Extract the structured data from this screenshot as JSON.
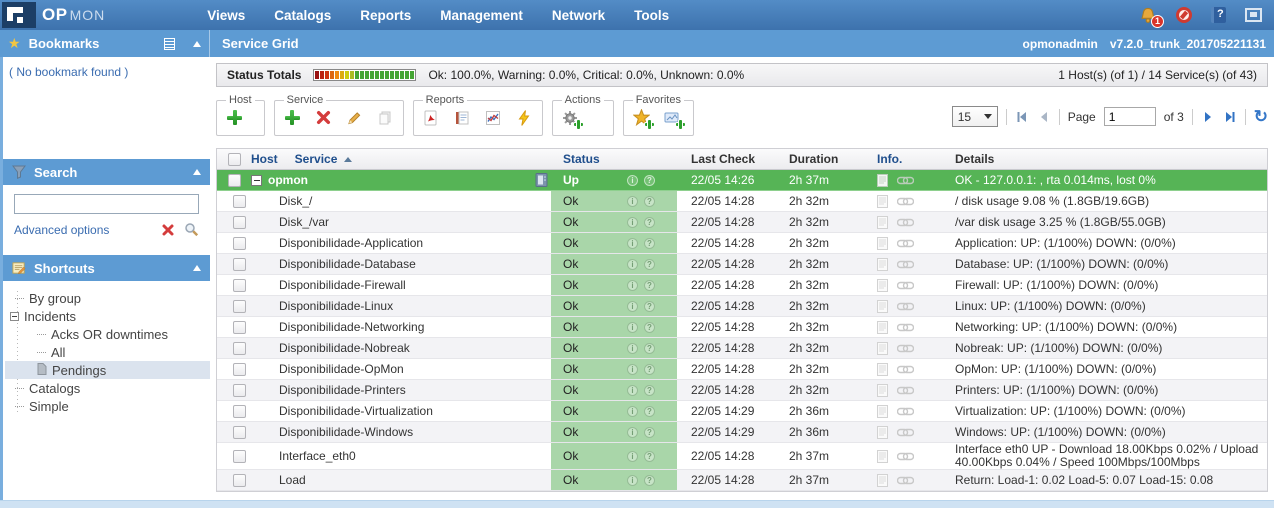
{
  "colors": {
    "topbar_blue": "#3d72ad",
    "panel_blue": "#5d9bd3",
    "host_row_green": "#56b456",
    "ok_cell_green": "#a9d6a9",
    "header_text_navy": "#1f4e8c",
    "alert_red": "#d9342b"
  },
  "icons": {
    "star": "★",
    "collapse_arrow": "▲",
    "sort_asc": "▲",
    "dropdown_arrow": "▼",
    "refresh": "↻",
    "minus_box": "−",
    "info_circle": "i",
    "question_circle": "?"
  },
  "topbar": {
    "logo_op": "OP",
    "logo_mon": "MON",
    "menu": [
      "Views",
      "Catalogs",
      "Reports",
      "Management",
      "Network",
      "Tools"
    ],
    "alert_badge": "1"
  },
  "subheader": {
    "bookmarks_title": "Bookmarks",
    "page_title": "Service Grid",
    "user": "opmonadmin",
    "version": "v7.2.0_trunk_201705221131"
  },
  "sidebar": {
    "no_bookmark": "( No bookmark found )",
    "search_title": "Search",
    "search_value": "",
    "advanced_options": "Advanced options",
    "shortcuts_title": "Shortcuts",
    "tree": [
      {
        "label": "By group",
        "level": 0,
        "icon": "leaf"
      },
      {
        "label": "Incidents",
        "level": 0,
        "icon": "minus"
      },
      {
        "label": "Acks OR downtimes",
        "level": 1,
        "icon": "leaf"
      },
      {
        "label": "All",
        "level": 1,
        "icon": "leaf"
      },
      {
        "label": "Pendings",
        "level": 1,
        "icon": "file",
        "selected": true
      },
      {
        "label": "Catalogs",
        "level": 0,
        "icon": "leaf"
      },
      {
        "label": "Simple",
        "level": 0,
        "icon": "leaf"
      }
    ]
  },
  "statusbar": {
    "label": "Status Totals",
    "summary": "Ok: 100.0%, Warning: 0.0%, Critical: 0.0%, Unknown: 0.0%",
    "right": "1 Host(s) (of 1) / 14 Service(s) (of 43)",
    "meter_colors": [
      "#991111",
      "#bb2211",
      "#cc3311",
      "#dd6611",
      "#ee8811",
      "#ddaa11",
      "#cccc11",
      "#aabb22",
      "#44a533",
      "#44a533",
      "#44a533",
      "#44a533",
      "#44a533",
      "#44a533",
      "#44a533",
      "#44a533",
      "#44a533",
      "#44a533",
      "#44a533",
      "#44a533"
    ]
  },
  "toolbar": {
    "groups": {
      "host": "Host",
      "service": "Service",
      "reports": "Reports",
      "actions": "Actions",
      "favorites": "Favorites"
    }
  },
  "pagination": {
    "page_size": "15",
    "page_label": "Page",
    "page_value": "1",
    "of_label": "of 3"
  },
  "table": {
    "headers": {
      "host": "Host",
      "service": "Service",
      "status": "Status",
      "last_check": "Last Check",
      "duration": "Duration",
      "info": "Info.",
      "details": "Details"
    },
    "host_row": {
      "name": "opmon",
      "status": "Up",
      "last_check": "22/05 14:26",
      "duration": "2h 37m",
      "details": "OK - 127.0.0.1: , rta 0.014ms, lost 0%"
    },
    "rows": [
      {
        "service": "Disk_/",
        "status": "Ok",
        "last_check": "22/05 14:28",
        "duration": "2h 32m",
        "details": "/ disk usage 9.08 % (1.8GB/19.6GB)"
      },
      {
        "service": "Disk_/var",
        "status": "Ok",
        "last_check": "22/05 14:28",
        "duration": "2h 32m",
        "details": "/var disk usage 3.25 % (1.8GB/55.0GB)"
      },
      {
        "service": "Disponibilidade-Application",
        "status": "Ok",
        "last_check": "22/05 14:28",
        "duration": "2h 32m",
        "details": "Application: UP: (1/100%) DOWN: (0/0%)"
      },
      {
        "service": "Disponibilidade-Database",
        "status": "Ok",
        "last_check": "22/05 14:28",
        "duration": "2h 32m",
        "details": "Database: UP: (1/100%) DOWN: (0/0%)"
      },
      {
        "service": "Disponibilidade-Firewall",
        "status": "Ok",
        "last_check": "22/05 14:28",
        "duration": "2h 32m",
        "details": "Firewall: UP: (1/100%) DOWN: (0/0%)"
      },
      {
        "service": "Disponibilidade-Linux",
        "status": "Ok",
        "last_check": "22/05 14:28",
        "duration": "2h 32m",
        "details": "Linux: UP: (1/100%) DOWN: (0/0%)"
      },
      {
        "service": "Disponibilidade-Networking",
        "status": "Ok",
        "last_check": "22/05 14:28",
        "duration": "2h 32m",
        "details": "Networking: UP: (1/100%) DOWN: (0/0%)"
      },
      {
        "service": "Disponibilidade-Nobreak",
        "status": "Ok",
        "last_check": "22/05 14:28",
        "duration": "2h 32m",
        "details": "Nobreak: UP: (1/100%) DOWN: (0/0%)"
      },
      {
        "service": "Disponibilidade-OpMon",
        "status": "Ok",
        "last_check": "22/05 14:28",
        "duration": "2h 32m",
        "details": "OpMon: UP: (1/100%) DOWN: (0/0%)"
      },
      {
        "service": "Disponibilidade-Printers",
        "status": "Ok",
        "last_check": "22/05 14:28",
        "duration": "2h 32m",
        "details": "Printers: UP: (1/100%) DOWN: (0/0%)"
      },
      {
        "service": "Disponibilidade-Virtualization",
        "status": "Ok",
        "last_check": "22/05 14:29",
        "duration": "2h 36m",
        "details": "Virtualization: UP: (1/100%) DOWN: (0/0%)"
      },
      {
        "service": "Disponibilidade-Windows",
        "status": "Ok",
        "last_check": "22/05 14:29",
        "duration": "2h 36m",
        "details": "Windows: UP: (1/100%) DOWN: (0/0%)"
      },
      {
        "service": "Interface_eth0",
        "status": "Ok",
        "last_check": "22/05 14:28",
        "duration": "2h 37m",
        "details": "Interface eth0 UP - Download 18.00Kbps 0.02% / Upload 40.00Kbps 0.04% / Speed 100Mbps/100Mbps"
      },
      {
        "service": "Load",
        "status": "Ok",
        "last_check": "22/05 14:28",
        "duration": "2h 37m",
        "details": "Return: Load-1: 0.02 Load-5: 0.07 Load-15: 0.08"
      }
    ]
  }
}
